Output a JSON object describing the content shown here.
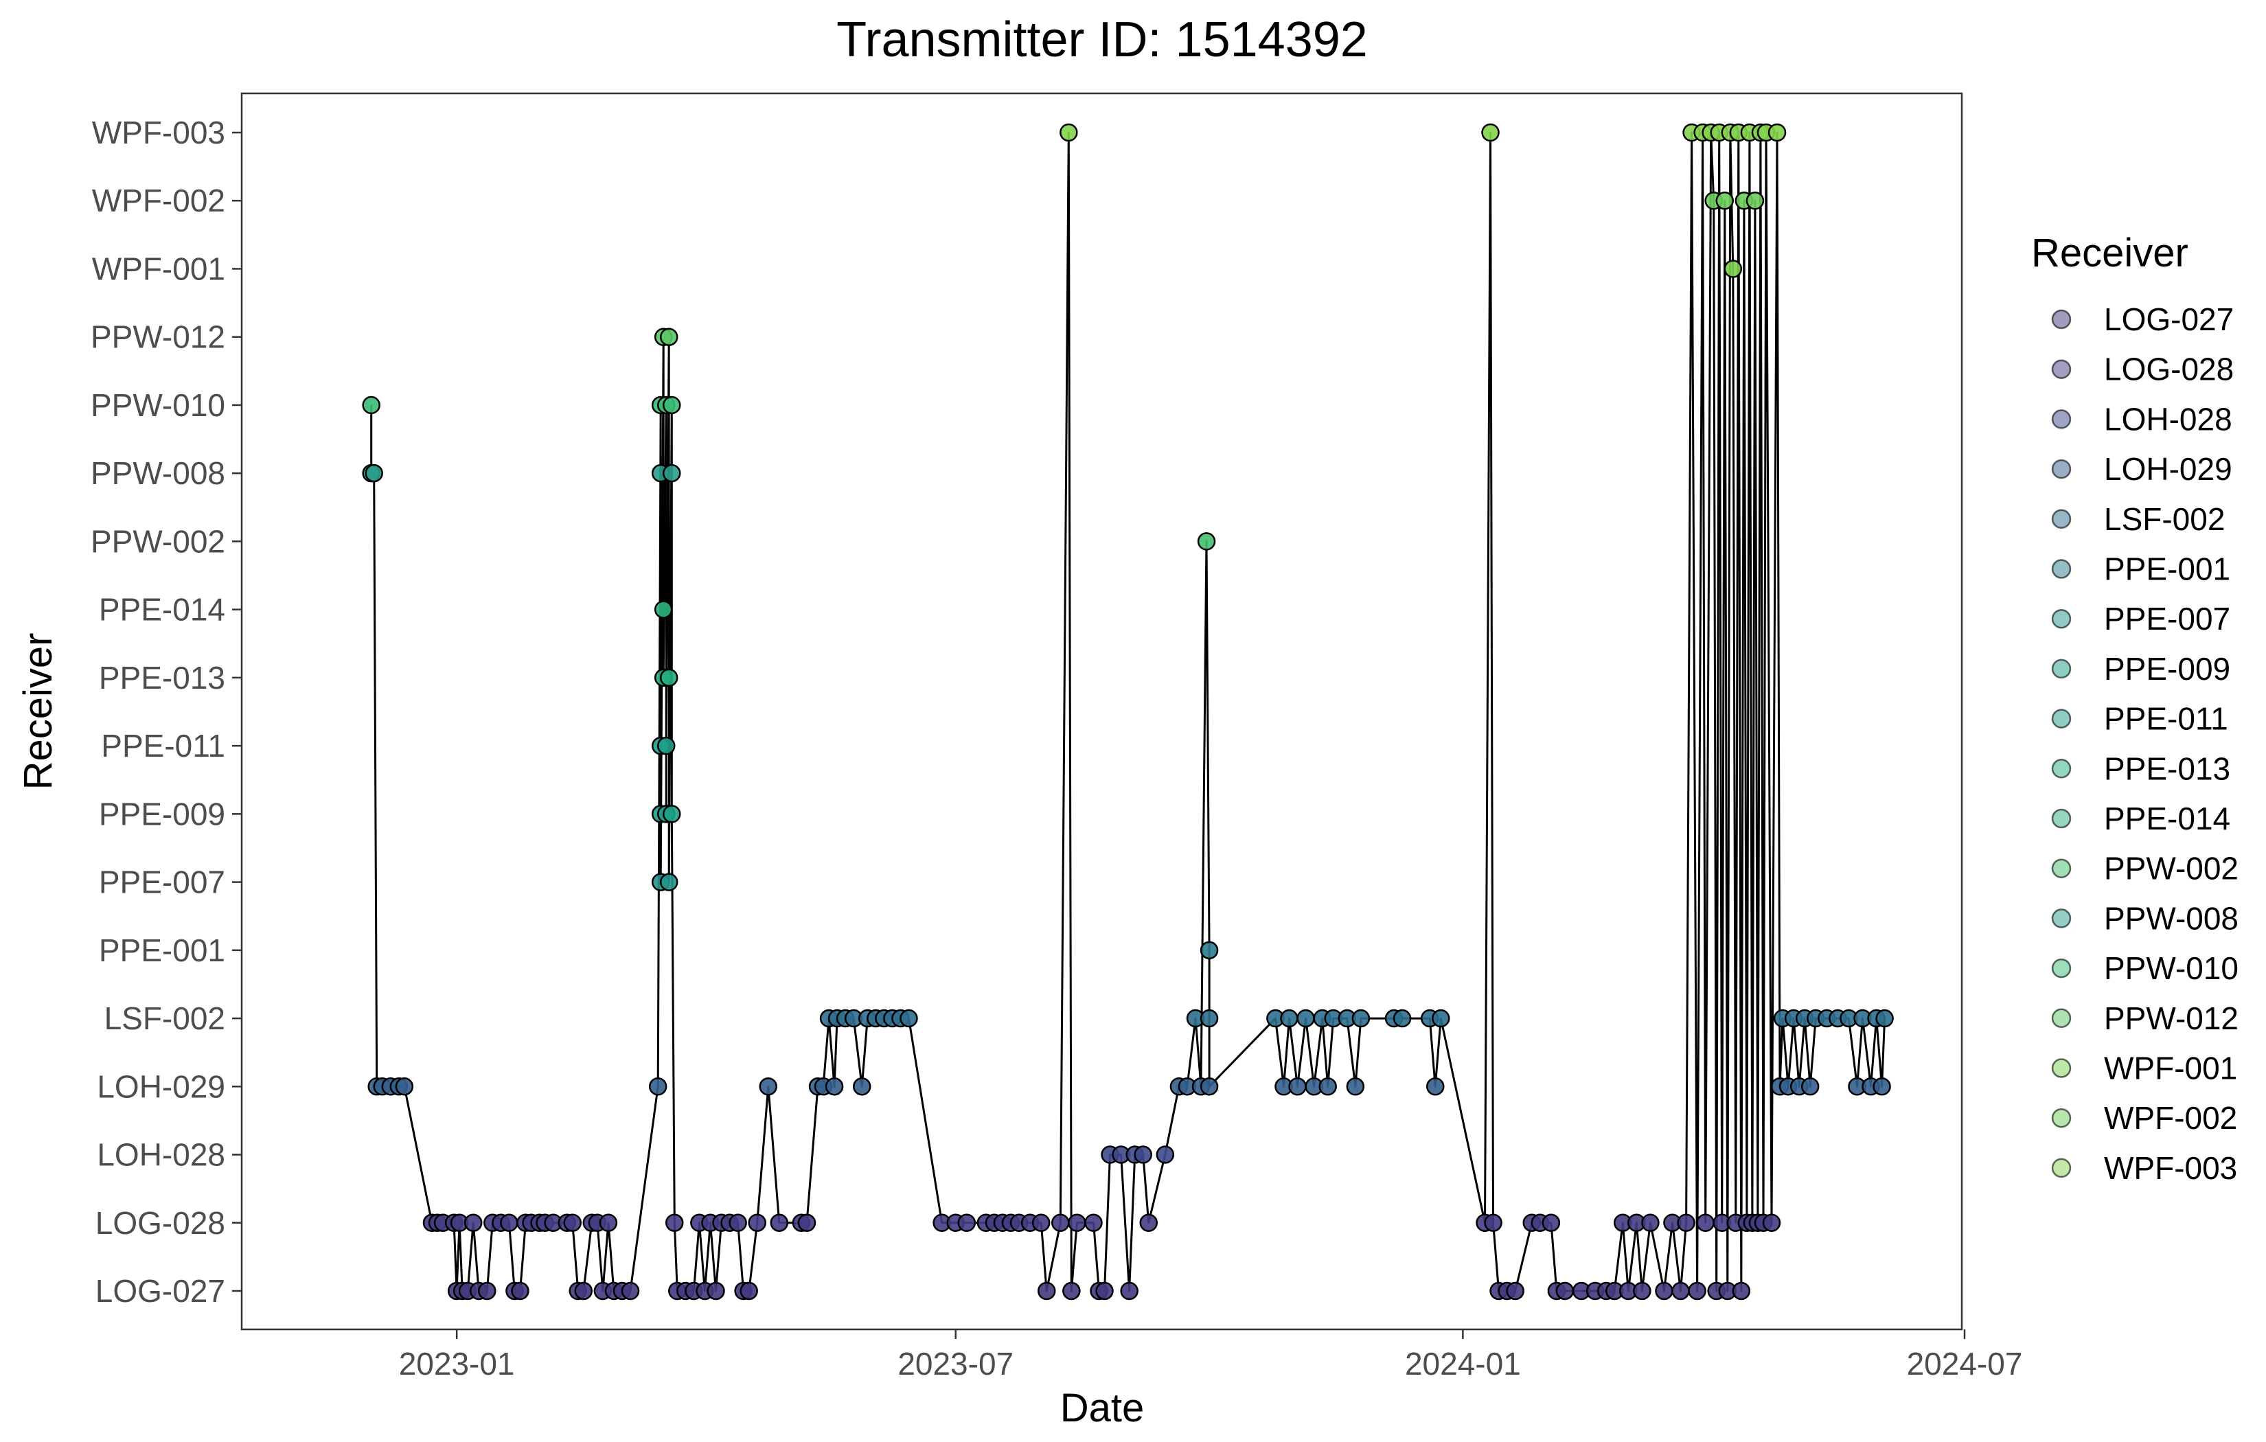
{
  "chart_data": {
    "type": "line",
    "title": "Transmitter ID: 1514392",
    "xlabel": "Date",
    "ylabel": "Receiver",
    "grid": false,
    "legend": {
      "title": "Receiver",
      "position": "right"
    },
    "xlim": [
      "2022-10-15",
      "2024-06-30"
    ],
    "x_ticks": [
      "2023-01",
      "2023-07",
      "2024-01",
      "2024-07"
    ],
    "categories": [
      "LOG-027",
      "LOG-028",
      "LOH-028",
      "LOH-029",
      "LSF-002",
      "PPE-001",
      "PPE-007",
      "PPE-009",
      "PPE-011",
      "PPE-013",
      "PPE-014",
      "PPW-002",
      "PPW-008",
      "PPW-010",
      "PPW-012",
      "WPF-001",
      "WPF-002",
      "WPF-003"
    ],
    "colors": [
      "#46397f",
      "#433d84",
      "#3e4989",
      "#355f8d",
      "#2f6e8e",
      "#297b8e",
      "#22948b",
      "#1fa088",
      "#1f9e89",
      "#26ad81",
      "#2db27d",
      "#44bf70",
      "#2a9d8c",
      "#3bbb75",
      "#5ac864",
      "#7ad151",
      "#6ccd5a",
      "#84d44b"
    ],
    "series": [
      {
        "name": "Transmitter 1514392",
        "points": [
          [
            "2022-12-01",
            "PPW-010"
          ],
          [
            "2022-12-01",
            "PPW-008"
          ],
          [
            "2022-12-02",
            "PPW-008"
          ],
          [
            "2022-12-03",
            "LOH-029"
          ],
          [
            "2022-12-05",
            "LOH-029"
          ],
          [
            "2022-12-08",
            "LOH-029"
          ],
          [
            "2022-12-11",
            "LOH-029"
          ],
          [
            "2022-12-13",
            "LOH-029"
          ],
          [
            "2022-12-23",
            "LOG-028"
          ],
          [
            "2022-12-25",
            "LOG-028"
          ],
          [
            "2022-12-27",
            "LOG-028"
          ],
          [
            "2022-12-31",
            "LOG-028"
          ],
          [
            "2023-01-01",
            "LOG-027"
          ],
          [
            "2023-01-02",
            "LOG-028"
          ],
          [
            "2023-01-03",
            "LOG-027"
          ],
          [
            "2023-01-05",
            "LOG-027"
          ],
          [
            "2023-01-07",
            "LOG-028"
          ],
          [
            "2023-01-09",
            "LOG-027"
          ],
          [
            "2023-01-12",
            "LOG-027"
          ],
          [
            "2023-01-14",
            "LOG-028"
          ],
          [
            "2023-01-17",
            "LOG-028"
          ],
          [
            "2023-01-20",
            "LOG-028"
          ],
          [
            "2023-01-22",
            "LOG-027"
          ],
          [
            "2023-01-24",
            "LOG-027"
          ],
          [
            "2023-01-26",
            "LOG-028"
          ],
          [
            "2023-01-28",
            "LOG-028"
          ],
          [
            "2023-01-31",
            "LOG-028"
          ],
          [
            "2023-02-02",
            "LOG-028"
          ],
          [
            "2023-02-05",
            "LOG-028"
          ],
          [
            "2023-02-10",
            "LOG-028"
          ],
          [
            "2023-02-12",
            "LOG-028"
          ],
          [
            "2023-02-14",
            "LOG-027"
          ],
          [
            "2023-02-16",
            "LOG-027"
          ],
          [
            "2023-02-19",
            "LOG-028"
          ],
          [
            "2023-02-21",
            "LOG-028"
          ],
          [
            "2023-02-23",
            "LOG-027"
          ],
          [
            "2023-02-25",
            "LOG-028"
          ],
          [
            "2023-02-27",
            "LOG-027"
          ],
          [
            "2023-03-02",
            "LOG-027"
          ],
          [
            "2023-03-05",
            "LOG-027"
          ],
          [
            "2023-03-15",
            "LOH-029"
          ],
          [
            "2023-03-16",
            "PPW-010"
          ],
          [
            "2023-03-16",
            "PPW-008"
          ],
          [
            "2023-03-16",
            "PPE-011"
          ],
          [
            "2023-03-16",
            "PPE-009"
          ],
          [
            "2023-03-16",
            "PPE-007"
          ],
          [
            "2023-03-17",
            "PPW-012"
          ],
          [
            "2023-03-17",
            "PPE-014"
          ],
          [
            "2023-03-17",
            "PPE-013"
          ],
          [
            "2023-03-18",
            "PPW-010"
          ],
          [
            "2023-03-18",
            "PPE-009"
          ],
          [
            "2023-03-18",
            "PPE-011"
          ],
          [
            "2023-03-19",
            "PPW-012"
          ],
          [
            "2023-03-19",
            "PPE-013"
          ],
          [
            "2023-03-19",
            "PPE-007"
          ],
          [
            "2023-03-20",
            "PPW-010"
          ],
          [
            "2023-03-20",
            "PPW-008"
          ],
          [
            "2023-03-20",
            "PPE-009"
          ],
          [
            "2023-03-21",
            "LOG-028"
          ],
          [
            "2023-03-22",
            "LOG-027"
          ],
          [
            "2023-03-25",
            "LOG-027"
          ],
          [
            "2023-03-28",
            "LOG-027"
          ],
          [
            "2023-03-30",
            "LOG-028"
          ],
          [
            "2023-04-01",
            "LOG-027"
          ],
          [
            "2023-04-03",
            "LOG-028"
          ],
          [
            "2023-04-05",
            "LOG-027"
          ],
          [
            "2023-04-07",
            "LOG-028"
          ],
          [
            "2023-04-10",
            "LOG-028"
          ],
          [
            "2023-04-13",
            "LOG-028"
          ],
          [
            "2023-04-15",
            "LOG-027"
          ],
          [
            "2023-04-17",
            "LOG-027"
          ],
          [
            "2023-04-20",
            "LOG-028"
          ],
          [
            "2023-04-24",
            "LOH-029"
          ],
          [
            "2023-04-28",
            "LOG-028"
          ],
          [
            "2023-05-06",
            "LOG-028"
          ],
          [
            "2023-05-08",
            "LOG-028"
          ],
          [
            "2023-05-12",
            "LOH-029"
          ],
          [
            "2023-05-14",
            "LOH-029"
          ],
          [
            "2023-05-16",
            "LSF-002"
          ],
          [
            "2023-05-18",
            "LOH-029"
          ],
          [
            "2023-05-19",
            "LSF-002"
          ],
          [
            "2023-05-22",
            "LSF-002"
          ],
          [
            "2023-05-25",
            "LSF-002"
          ],
          [
            "2023-05-28",
            "LOH-029"
          ],
          [
            "2023-05-30",
            "LSF-002"
          ],
          [
            "2023-06-02",
            "LSF-002"
          ],
          [
            "2023-06-05",
            "LSF-002"
          ],
          [
            "2023-06-08",
            "LSF-002"
          ],
          [
            "2023-06-11",
            "LSF-002"
          ],
          [
            "2023-06-14",
            "LSF-002"
          ],
          [
            "2023-06-26",
            "LOG-028"
          ],
          [
            "2023-07-01",
            "LOG-028"
          ],
          [
            "2023-07-05",
            "LOG-028"
          ],
          [
            "2023-07-12",
            "LOG-028"
          ],
          [
            "2023-07-15",
            "LOG-028"
          ],
          [
            "2023-07-18",
            "LOG-028"
          ],
          [
            "2023-07-21",
            "LOG-028"
          ],
          [
            "2023-07-24",
            "LOG-028"
          ],
          [
            "2023-07-28",
            "LOG-028"
          ],
          [
            "2023-08-01",
            "LOG-028"
          ],
          [
            "2023-08-03",
            "LOG-027"
          ],
          [
            "2023-08-08",
            "LOG-028"
          ],
          [
            "2023-08-11",
            "WPF-003"
          ],
          [
            "2023-08-12",
            "LOG-027"
          ],
          [
            "2023-08-14",
            "LOG-028"
          ],
          [
            "2023-08-20",
            "LOG-028"
          ],
          [
            "2023-08-22",
            "LOG-027"
          ],
          [
            "2023-08-24",
            "LOG-027"
          ],
          [
            "2023-08-26",
            "LOH-028"
          ],
          [
            "2023-08-30",
            "LOH-028"
          ],
          [
            "2023-09-02",
            "LOG-027"
          ],
          [
            "2023-09-04",
            "LOH-028"
          ],
          [
            "2023-09-07",
            "LOH-028"
          ],
          [
            "2023-09-09",
            "LOG-028"
          ],
          [
            "2023-09-15",
            "LOH-028"
          ],
          [
            "2023-09-20",
            "LOH-029"
          ],
          [
            "2023-09-23",
            "LOH-029"
          ],
          [
            "2023-09-26",
            "LSF-002"
          ],
          [
            "2023-09-28",
            "LOH-029"
          ],
          [
            "2023-09-30",
            "PPW-002"
          ],
          [
            "2023-10-01",
            "PPE-001"
          ],
          [
            "2023-10-01",
            "LSF-002"
          ],
          [
            "2023-10-01",
            "LOH-029"
          ],
          [
            "2023-10-25",
            "LSF-002"
          ],
          [
            "2023-10-28",
            "LOH-029"
          ],
          [
            "2023-10-30",
            "LSF-002"
          ],
          [
            "2023-11-02",
            "LOH-029"
          ],
          [
            "2023-11-05",
            "LSF-002"
          ],
          [
            "2023-11-08",
            "LOH-029"
          ],
          [
            "2023-11-11",
            "LSF-002"
          ],
          [
            "2023-11-13",
            "LOH-029"
          ],
          [
            "2023-11-15",
            "LSF-002"
          ],
          [
            "2023-11-20",
            "LSF-002"
          ],
          [
            "2023-11-23",
            "LOH-029"
          ],
          [
            "2023-11-25",
            "LSF-002"
          ],
          [
            "2023-12-07",
            "LSF-002"
          ],
          [
            "2023-12-10",
            "LSF-002"
          ],
          [
            "2023-12-20",
            "LSF-002"
          ],
          [
            "2023-12-22",
            "LOH-029"
          ],
          [
            "2023-12-24",
            "LSF-002"
          ],
          [
            "2024-01-09",
            "LOG-028"
          ],
          [
            "2024-01-11",
            "WPF-003"
          ],
          [
            "2024-01-12",
            "LOG-028"
          ],
          [
            "2024-01-14",
            "LOG-027"
          ],
          [
            "2024-01-17",
            "LOG-027"
          ],
          [
            "2024-01-20",
            "LOG-027"
          ],
          [
            "2024-01-26",
            "LOG-028"
          ],
          [
            "2024-01-29",
            "LOG-028"
          ],
          [
            "2024-02-02",
            "LOG-028"
          ],
          [
            "2024-02-04",
            "LOG-027"
          ],
          [
            "2024-02-07",
            "LOG-027"
          ],
          [
            "2024-02-13",
            "LOG-027"
          ],
          [
            "2024-02-18",
            "LOG-027"
          ],
          [
            "2024-02-22",
            "LOG-027"
          ],
          [
            "2024-02-25",
            "LOG-027"
          ],
          [
            "2024-02-28",
            "LOG-028"
          ],
          [
            "2024-03-01",
            "LOG-027"
          ],
          [
            "2024-03-04",
            "LOG-028"
          ],
          [
            "2024-03-06",
            "LOG-027"
          ],
          [
            "2024-03-09",
            "LOG-028"
          ],
          [
            "2024-03-14",
            "LOG-027"
          ],
          [
            "2024-03-17",
            "LOG-028"
          ],
          [
            "2024-03-20",
            "LOG-027"
          ],
          [
            "2024-03-22",
            "LOG-028"
          ],
          [
            "2024-03-24",
            "WPF-003"
          ],
          [
            "2024-03-26",
            "LOG-027"
          ],
          [
            "2024-03-28",
            "WPF-003"
          ],
          [
            "2024-03-29",
            "LOG-028"
          ],
          [
            "2024-03-31",
            "WPF-003"
          ],
          [
            "2024-04-01",
            "WPF-002"
          ],
          [
            "2024-04-02",
            "LOG-027"
          ],
          [
            "2024-04-03",
            "WPF-003"
          ],
          [
            "2024-04-04",
            "LOG-028"
          ],
          [
            "2024-04-05",
            "WPF-002"
          ],
          [
            "2024-04-06",
            "LOG-027"
          ],
          [
            "2024-04-07",
            "WPF-003"
          ],
          [
            "2024-04-08",
            "WPF-001"
          ],
          [
            "2024-04-09",
            "LOG-028"
          ],
          [
            "2024-04-10",
            "WPF-003"
          ],
          [
            "2024-04-11",
            "LOG-027"
          ],
          [
            "2024-04-12",
            "WPF-002"
          ],
          [
            "2024-04-13",
            "LOG-028"
          ],
          [
            "2024-04-14",
            "WPF-003"
          ],
          [
            "2024-04-15",
            "LOG-028"
          ],
          [
            "2024-04-16",
            "WPF-002"
          ],
          [
            "2024-04-17",
            "LOG-028"
          ],
          [
            "2024-04-18",
            "WPF-003"
          ],
          [
            "2024-04-19",
            "LOG-028"
          ],
          [
            "2024-04-20",
            "WPF-003"
          ],
          [
            "2024-04-22",
            "LOG-028"
          ],
          [
            "2024-04-24",
            "WPF-003"
          ],
          [
            "2024-04-25",
            "LOH-029"
          ],
          [
            "2024-04-26",
            "LSF-002"
          ],
          [
            "2024-04-28",
            "LOH-029"
          ],
          [
            "2024-04-30",
            "LSF-002"
          ],
          [
            "2024-05-02",
            "LOH-029"
          ],
          [
            "2024-05-04",
            "LSF-002"
          ],
          [
            "2024-05-06",
            "LOH-029"
          ],
          [
            "2024-05-08",
            "LSF-002"
          ],
          [
            "2024-05-12",
            "LSF-002"
          ],
          [
            "2024-05-16",
            "LSF-002"
          ],
          [
            "2024-05-20",
            "LSF-002"
          ],
          [
            "2024-05-23",
            "LOH-029"
          ],
          [
            "2024-05-25",
            "LSF-002"
          ],
          [
            "2024-05-28",
            "LOH-029"
          ],
          [
            "2024-05-30",
            "LSF-002"
          ],
          [
            "2024-06-01",
            "LOH-029"
          ],
          [
            "2024-06-02",
            "LSF-002"
          ]
        ]
      }
    ]
  }
}
